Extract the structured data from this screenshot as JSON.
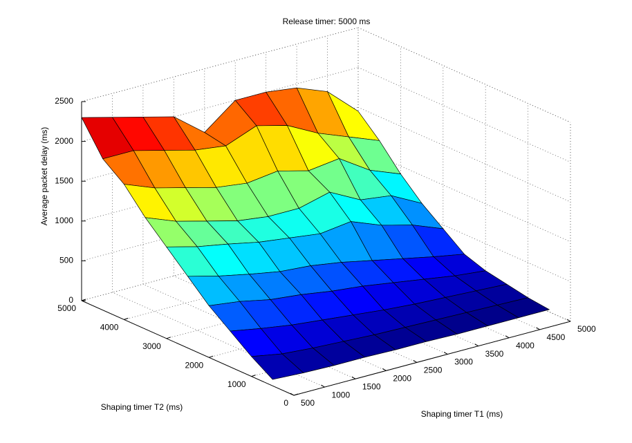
{
  "chart_data": {
    "type": "surface",
    "title": "Release timer: 5000 ms",
    "xlabel": "Shaping timer T1 (ms)",
    "ylabel": "Shaping timer T2 (ms)",
    "zlabel": "Average packet delay (ms)",
    "colormap": "jet",
    "grid": true,
    "x": [
      500,
      1000,
      1500,
      2000,
      2500,
      3000,
      3500,
      4000,
      4500,
      5000
    ],
    "y": [
      500,
      1000,
      1500,
      2000,
      2500,
      3000,
      3500,
      4000,
      4500,
      5000
    ],
    "z": [
      [
        80,
        60,
        50,
        50,
        40,
        40,
        30,
        30,
        30,
        30
      ],
      [
        250,
        180,
        150,
        130,
        110,
        100,
        90,
        80,
        70,
        60
      ],
      [
        450,
        380,
        320,
        280,
        240,
        200,
        170,
        150,
        130,
        110
      ],
      [
        650,
        600,
        520,
        480,
        420,
        380,
        320,
        260,
        200,
        160
      ],
      [
        900,
        800,
        720,
        650,
        620,
        560,
        480,
        400,
        320,
        250
      ],
      [
        1150,
        1050,
        980,
        900,
        850,
        800,
        850,
        700,
        600,
        450
      ],
      [
        1400,
        1250,
        1150,
        1050,
        1000,
        1000,
        1100,
        900,
        850,
        650
      ],
      [
        1700,
        1550,
        1450,
        1350,
        1300,
        1350,
        1250,
        1300,
        1050,
        900
      ],
      [
        1900,
        1900,
        1800,
        1700,
        1650,
        1800,
        1700,
        1500,
        1350,
        1200
      ],
      [
        2300,
        2200,
        2100,
        2000,
        1700,
        2000,
        2000,
        1950,
        1800,
        1450
      ]
    ],
    "xlim": [
      500,
      5000
    ],
    "ylim": [
      0,
      5000
    ],
    "zlim": [
      0,
      2500
    ],
    "xticks": [
      500,
      1000,
      1500,
      2000,
      2500,
      3000,
      3500,
      4000,
      4500,
      5000
    ],
    "yticks": [
      0,
      1000,
      2000,
      3000,
      4000,
      5000
    ],
    "zticks": [
      0,
      500,
      1000,
      1500,
      2000,
      2500
    ]
  }
}
